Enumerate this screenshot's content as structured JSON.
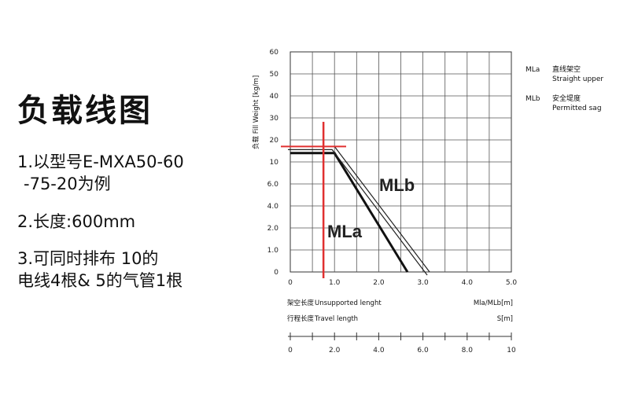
{
  "title": "负载线图",
  "notes": {
    "line1a": "1.以型号E-MXA50-60",
    "line1b": "-75-20为例",
    "line2": "2.长度:600mm",
    "line3a": "3.可同时排布  10的",
    "line3b": "电线4根&  5的气管1根"
  },
  "legend": [
    {
      "code": "MLa",
      "cn": "直线架空",
      "en": "Straight upper"
    },
    {
      "code": "MLb",
      "cn": "安全堤度",
      "en": "Permitted sag"
    }
  ],
  "chart_data": {
    "type": "line",
    "ylabel": "负载 Fill Weight [kg/m]",
    "y_ticks": [
      "60",
      "50",
      "40",
      "30",
      "20",
      "10",
      "6.0",
      "4.0",
      "2.0",
      "1.0",
      "0"
    ],
    "x_ticks": [
      "0",
      "1.0",
      "2.0",
      "3.0",
      "4.0",
      "5.0"
    ],
    "xlabel_cn": "架空长度",
    "xlabel_en": "Unsupported lenght",
    "xlabel_unit": "Mla/MLb[m]",
    "x2label_cn": "行程长度",
    "x2label_en": "Travel length",
    "x2label_unit": "S[m]",
    "x2_ticks": [
      "0",
      "2.0",
      "4.0",
      "6.0",
      "8.0",
      "10"
    ],
    "series": [
      {
        "name": "MLa",
        "points": [
          [
            0,
            14
          ],
          [
            1.0,
            14
          ],
          [
            2.65,
            0
          ]
        ]
      },
      {
        "name": "MLb",
        "points": [
          [
            0,
            17
          ],
          [
            1.0,
            17
          ],
          [
            3.15,
            0
          ]
        ]
      }
    ],
    "example_marker": {
      "x": 0.75,
      "y": 17
    },
    "marker_color": "#e03030",
    "grid": true
  }
}
